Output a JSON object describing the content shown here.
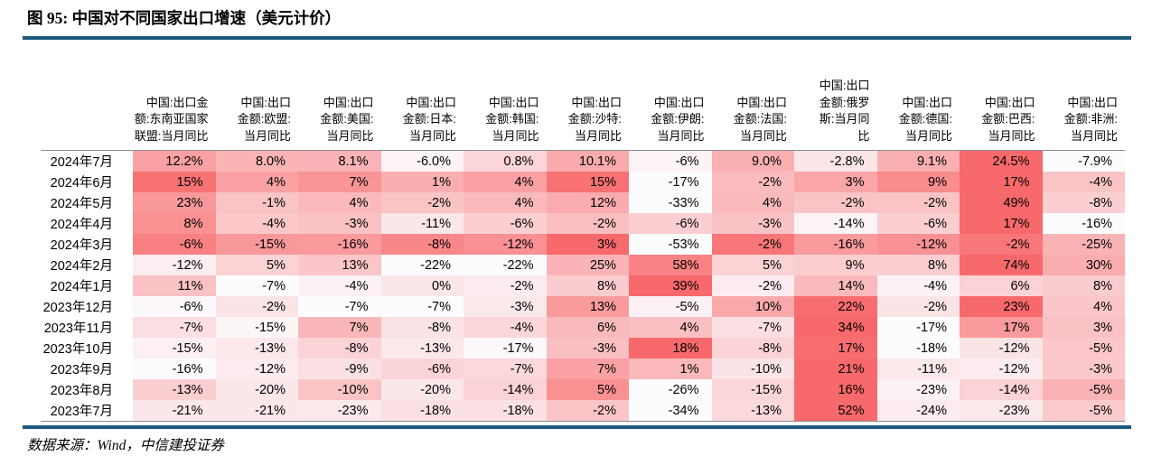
{
  "header": {
    "title": "图 95: 中国对不同国家出口增速（美元计价）"
  },
  "footer": {
    "source": "数据来源：Wind，中信建投证券"
  },
  "colors": {
    "accent_rule": "#1B587C",
    "table_border": "#8c8c8c",
    "heat_min": "#FCFCFF",
    "heat_max": "#F8696B"
  },
  "chart_data": {
    "type": "heatmap",
    "title": "图 95: 中国对不同国家出口增速（美元计价）",
    "value_unit": "%（当月同比）",
    "color_scale": {
      "min_color": "#FCFCFF",
      "max_color": "#F8696B",
      "mode": "linear-per-row"
    },
    "columns": [
      {
        "name": "asean",
        "label": "中国:出口金\n额:东南亚国家\n联盟:当月同比",
        "full": "中国:出口金额:东南亚国家联盟:当月同比"
      },
      {
        "name": "eu",
        "label": "中国:出口\n金额:欧盟:\n当月同比",
        "full": "中国:出口金额:欧盟:当月同比"
      },
      {
        "name": "usa",
        "label": "中国:出口\n金额:美国:\n当月同比",
        "full": "中国:出口金额:美国:当月同比"
      },
      {
        "name": "japan",
        "label": "中国:出口\n金额:日本:\n当月同比",
        "full": "中国:出口金额:日本:当月同比"
      },
      {
        "name": "korea",
        "label": "中国:出口\n金额:韩国:\n当月同比",
        "full": "中国:出口金额:韩国:当月同比"
      },
      {
        "name": "saudi",
        "label": "中国:出口\n金额:沙特:\n当月同比",
        "full": "中国:出口金额:沙特:当月同比"
      },
      {
        "name": "iran",
        "label": "中国:出口\n金额:伊朗:\n当月同比",
        "full": "中国:出口金额:伊朗:当月同比"
      },
      {
        "name": "france",
        "label": "中国:出口\n金额:法国:\n当月同比",
        "full": "中国:出口金额:法国:当月同比"
      },
      {
        "name": "russia",
        "label": "中国:出口\n金额:俄罗\n斯:当月同\n比",
        "full": "中国:出口金额:俄罗斯:当月同比"
      },
      {
        "name": "germany",
        "label": "中国:出口\n金额:德国:\n当月同比",
        "full": "中国:出口金额:德国:当月同比"
      },
      {
        "name": "brazil",
        "label": "中国:出口\n金额:巴西:\n当月同比",
        "full": "中国:出口金额:巴西:当月同比"
      },
      {
        "name": "africa",
        "label": "中国:出口\n金额:非洲:\n当月同比",
        "full": "中国:出口金额:非洲:当月同比"
      }
    ],
    "rows": [
      {
        "label": "2024年7月",
        "values": [
          "12.2%",
          "8.0%",
          "8.1%",
          "-6.0%",
          "0.8%",
          "10.1%",
          "-6%",
          "9.0%",
          "-2.8%",
          "9.1%",
          "24.5%",
          "-7.9%"
        ]
      },
      {
        "label": "2024年6月",
        "values": [
          "15%",
          "4%",
          "7%",
          "1%",
          "4%",
          "15%",
          "-17%",
          "-2%",
          "3%",
          "9%",
          "17%",
          "-4%"
        ]
      },
      {
        "label": "2024年5月",
        "values": [
          "23%",
          "-1%",
          "4%",
          "-2%",
          "4%",
          "12%",
          "-33%",
          "4%",
          "-2%",
          "-2%",
          "49%",
          "-8%"
        ]
      },
      {
        "label": "2024年4月",
        "values": [
          "8%",
          "-4%",
          "-3%",
          "-11%",
          "-6%",
          "-2%",
          "-6%",
          "-3%",
          "-14%",
          "-6%",
          "17%",
          "-16%"
        ]
      },
      {
        "label": "2024年3月",
        "values": [
          "-6%",
          "-15%",
          "-16%",
          "-8%",
          "-12%",
          "3%",
          "-53%",
          "-2%",
          "-16%",
          "-12%",
          "-2%",
          "-25%"
        ]
      },
      {
        "label": "2024年2月",
        "values": [
          "-12%",
          "5%",
          "13%",
          "-22%",
          "-22%",
          "25%",
          "58%",
          "5%",
          "9%",
          "8%",
          "74%",
          "30%"
        ]
      },
      {
        "label": "2024年1月",
        "values": [
          "11%",
          "-7%",
          "-4%",
          "0%",
          "-2%",
          "8%",
          "39%",
          "-2%",
          "14%",
          "-4%",
          "6%",
          "8%"
        ]
      },
      {
        "label": "2023年12月",
        "values": [
          "-6%",
          "-2%",
          "-7%",
          "-7%",
          "-3%",
          "13%",
          "-5%",
          "10%",
          "22%",
          "-2%",
          "23%",
          "4%"
        ]
      },
      {
        "label": "2023年11月",
        "values": [
          "-7%",
          "-15%",
          "7%",
          "-8%",
          "-4%",
          "6%",
          "4%",
          "-7%",
          "34%",
          "-17%",
          "17%",
          "3%"
        ]
      },
      {
        "label": "2023年10月",
        "values": [
          "-15%",
          "-13%",
          "-8%",
          "-13%",
          "-17%",
          "-3%",
          "18%",
          "-8%",
          "17%",
          "-18%",
          "-12%",
          "-5%"
        ]
      },
      {
        "label": "2023年9月",
        "values": [
          "-16%",
          "-12%",
          "-9%",
          "-6%",
          "-7%",
          "7%",
          "1%",
          "-10%",
          "21%",
          "-11%",
          "-12%",
          "-3%"
        ]
      },
      {
        "label": "2023年8月",
        "values": [
          "-13%",
          "-20%",
          "-10%",
          "-20%",
          "-14%",
          "5%",
          "-26%",
          "-15%",
          "16%",
          "-23%",
          "-14%",
          "-5%"
        ]
      },
      {
        "label": "2023年7月",
        "values": [
          "-21%",
          "-21%",
          "-23%",
          "-18%",
          "-18%",
          "-2%",
          "-34%",
          "-13%",
          "52%",
          "-24%",
          "-23%",
          "-5%"
        ]
      }
    ]
  }
}
